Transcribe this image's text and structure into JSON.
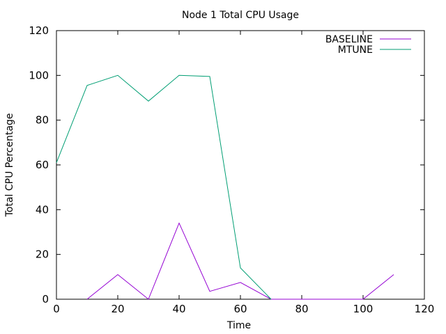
{
  "chart_data": {
    "type": "line",
    "title": "Node 1 Total CPU Usage",
    "xlabel": "Time",
    "ylabel": "Total CPU Percentage",
    "xlim": [
      0,
      120
    ],
    "ylim": [
      0,
      120
    ],
    "xticks": [
      0,
      20,
      40,
      60,
      80,
      100,
      120
    ],
    "yticks": [
      0,
      20,
      40,
      60,
      80,
      100,
      120
    ],
    "grid": false,
    "legend_position": "top-right",
    "series": [
      {
        "name": "BASELINE",
        "color": "#9400d3",
        "x": [
          10,
          20,
          30,
          40,
          50,
          60,
          70,
          100,
          110
        ],
        "y": [
          0,
          11,
          0,
          34,
          3.5,
          7.5,
          0,
          0,
          11
        ]
      },
      {
        "name": "MTUNE",
        "color": "#009e73",
        "x": [
          0,
          10,
          20,
          30,
          40,
          50,
          60,
          70
        ],
        "y": [
          61,
          95.5,
          100,
          88.5,
          100,
          99.5,
          14,
          0
        ]
      }
    ]
  }
}
